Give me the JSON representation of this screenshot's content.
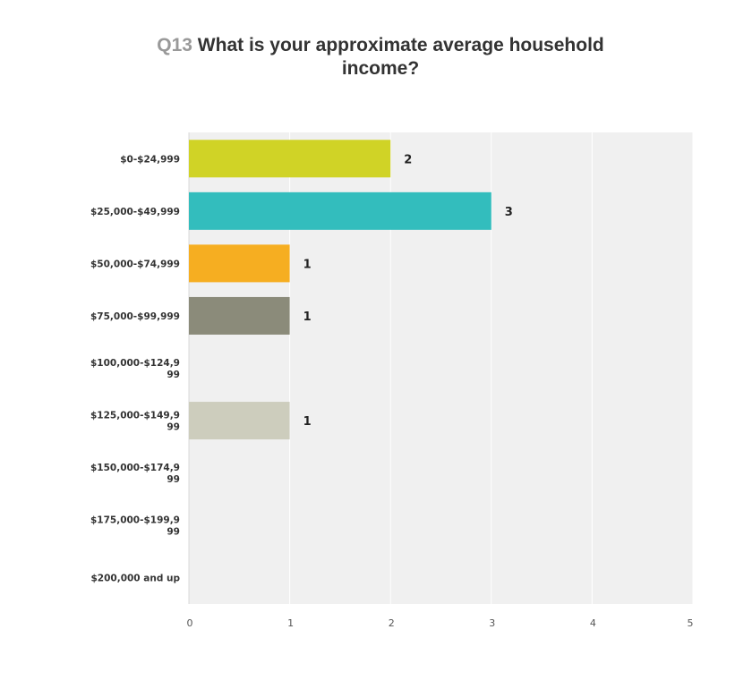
{
  "title": {
    "question_number": "Q13",
    "question_text": "What is your approximate average household income?"
  },
  "chart_data": {
    "type": "bar",
    "orientation": "horizontal",
    "title": "Q13 What is your approximate average household income?",
    "categories": [
      "$0-$24,999",
      "$25,000-$49,999",
      "$50,000-$74,999",
      "$75,000-$99,999",
      "$100,000-$124,999",
      "$125,000-$149,999",
      "$150,000-$174,999",
      "$175,000-$199,999",
      "$200,000 and up"
    ],
    "category_label_lines": [
      [
        "$0-$24,999"
      ],
      [
        "$25,000-$49,999"
      ],
      [
        "$50,000-$74,999"
      ],
      [
        "$75,000-$99,999"
      ],
      [
        "$100,000-$124,9",
        "99"
      ],
      [
        "$125,000-$149,9",
        "99"
      ],
      [
        "$150,000-$174,9",
        "99"
      ],
      [
        "$175,000-$199,9",
        "99"
      ],
      [
        "$200,000 and up"
      ]
    ],
    "values": [
      2,
      3,
      1,
      1,
      0,
      1,
      0,
      0,
      0
    ],
    "value_labels": [
      "2",
      "3",
      "1",
      "1",
      "",
      "1",
      "",
      "",
      ""
    ],
    "colors": [
      "#d0d326",
      "#33bdbd",
      "#f6ae21",
      "#8b8b7a",
      "#cfcfc0",
      "#cdcdbd",
      "#cdcdbd",
      "#cdcdbd",
      "#cdcdbd"
    ],
    "xlim": [
      0,
      5
    ],
    "xticks": [
      "0",
      "1",
      "2",
      "3",
      "4",
      "5"
    ],
    "xlabel": "",
    "ylabel": "",
    "grid": true,
    "legend": "none",
    "plot_background": "#f0f0f0",
    "gridline_color": "#ffffff"
  }
}
